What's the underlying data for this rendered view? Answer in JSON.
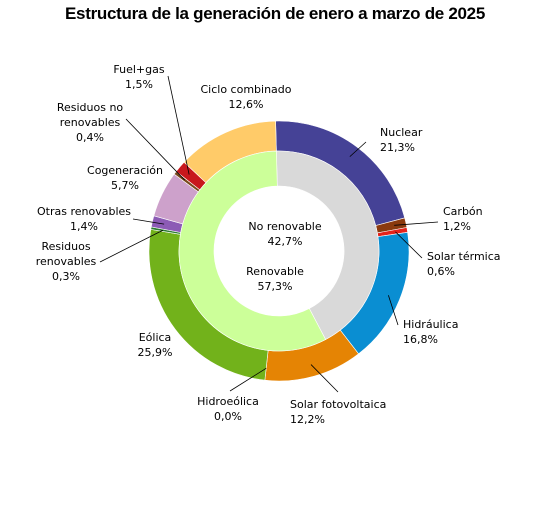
{
  "chart_data": {
    "type": "donut",
    "title": "Estructura de la generación de enero a marzo de 2025",
    "outer_ring": {
      "series": [
        {
          "name": "Nuclear",
          "value": 21.3,
          "value_label": "21,3%",
          "color": "#454296"
        },
        {
          "name": "Carbón",
          "value": 1.2,
          "value_label": "1,2%",
          "color": "#8B3A0E"
        },
        {
          "name": "Solar térmica",
          "value": 0.6,
          "value_label": "0,6%",
          "color": "#E5231B"
        },
        {
          "name": "Hidráulica",
          "value": 16.8,
          "value_label": "16,8%",
          "color": "#0A8ED2"
        },
        {
          "name": "Solar fotovoltaica",
          "value": 12.2,
          "value_label": "12,2%",
          "color": "#E58404"
        },
        {
          "name": "Hidroeólica",
          "value": 0.0,
          "value_label": "0,0%",
          "color": "#0F6B2E"
        },
        {
          "name": "Eólica",
          "value": 25.9,
          "value_label": "25,9%",
          "color": "#72B21B"
        },
        {
          "name": "Residuos renovables",
          "value": 0.3,
          "value_label": "0,3%",
          "color": "#2E7D32"
        },
        {
          "name": "Otras renovables",
          "value": 1.4,
          "value_label": "1,4%",
          "color": "#8C5BB5"
        },
        {
          "name": "Cogeneración",
          "value": 5.7,
          "value_label": "5,7%",
          "color": "#CDA1CB"
        },
        {
          "name": "Residuos no renovables",
          "value": 0.4,
          "value_label": "0,4%",
          "color": "#7A4A1E"
        },
        {
          "name": "Fuel+gas",
          "value": 1.5,
          "value_label": "1,5%",
          "color": "#C8171C"
        },
        {
          "name": "Ciclo combinado",
          "value": 12.6,
          "value_label": "12,6%",
          "color": "#FFCB69"
        }
      ]
    },
    "inner_ring": {
      "series": [
        {
          "name": "No renovable",
          "value": 42.7,
          "value_label": "42,7%",
          "color": "#D9D9D9"
        },
        {
          "name": "Renovable",
          "value": 57.3,
          "value_label": "57,3%",
          "color": "#CCFF99"
        }
      ]
    }
  }
}
